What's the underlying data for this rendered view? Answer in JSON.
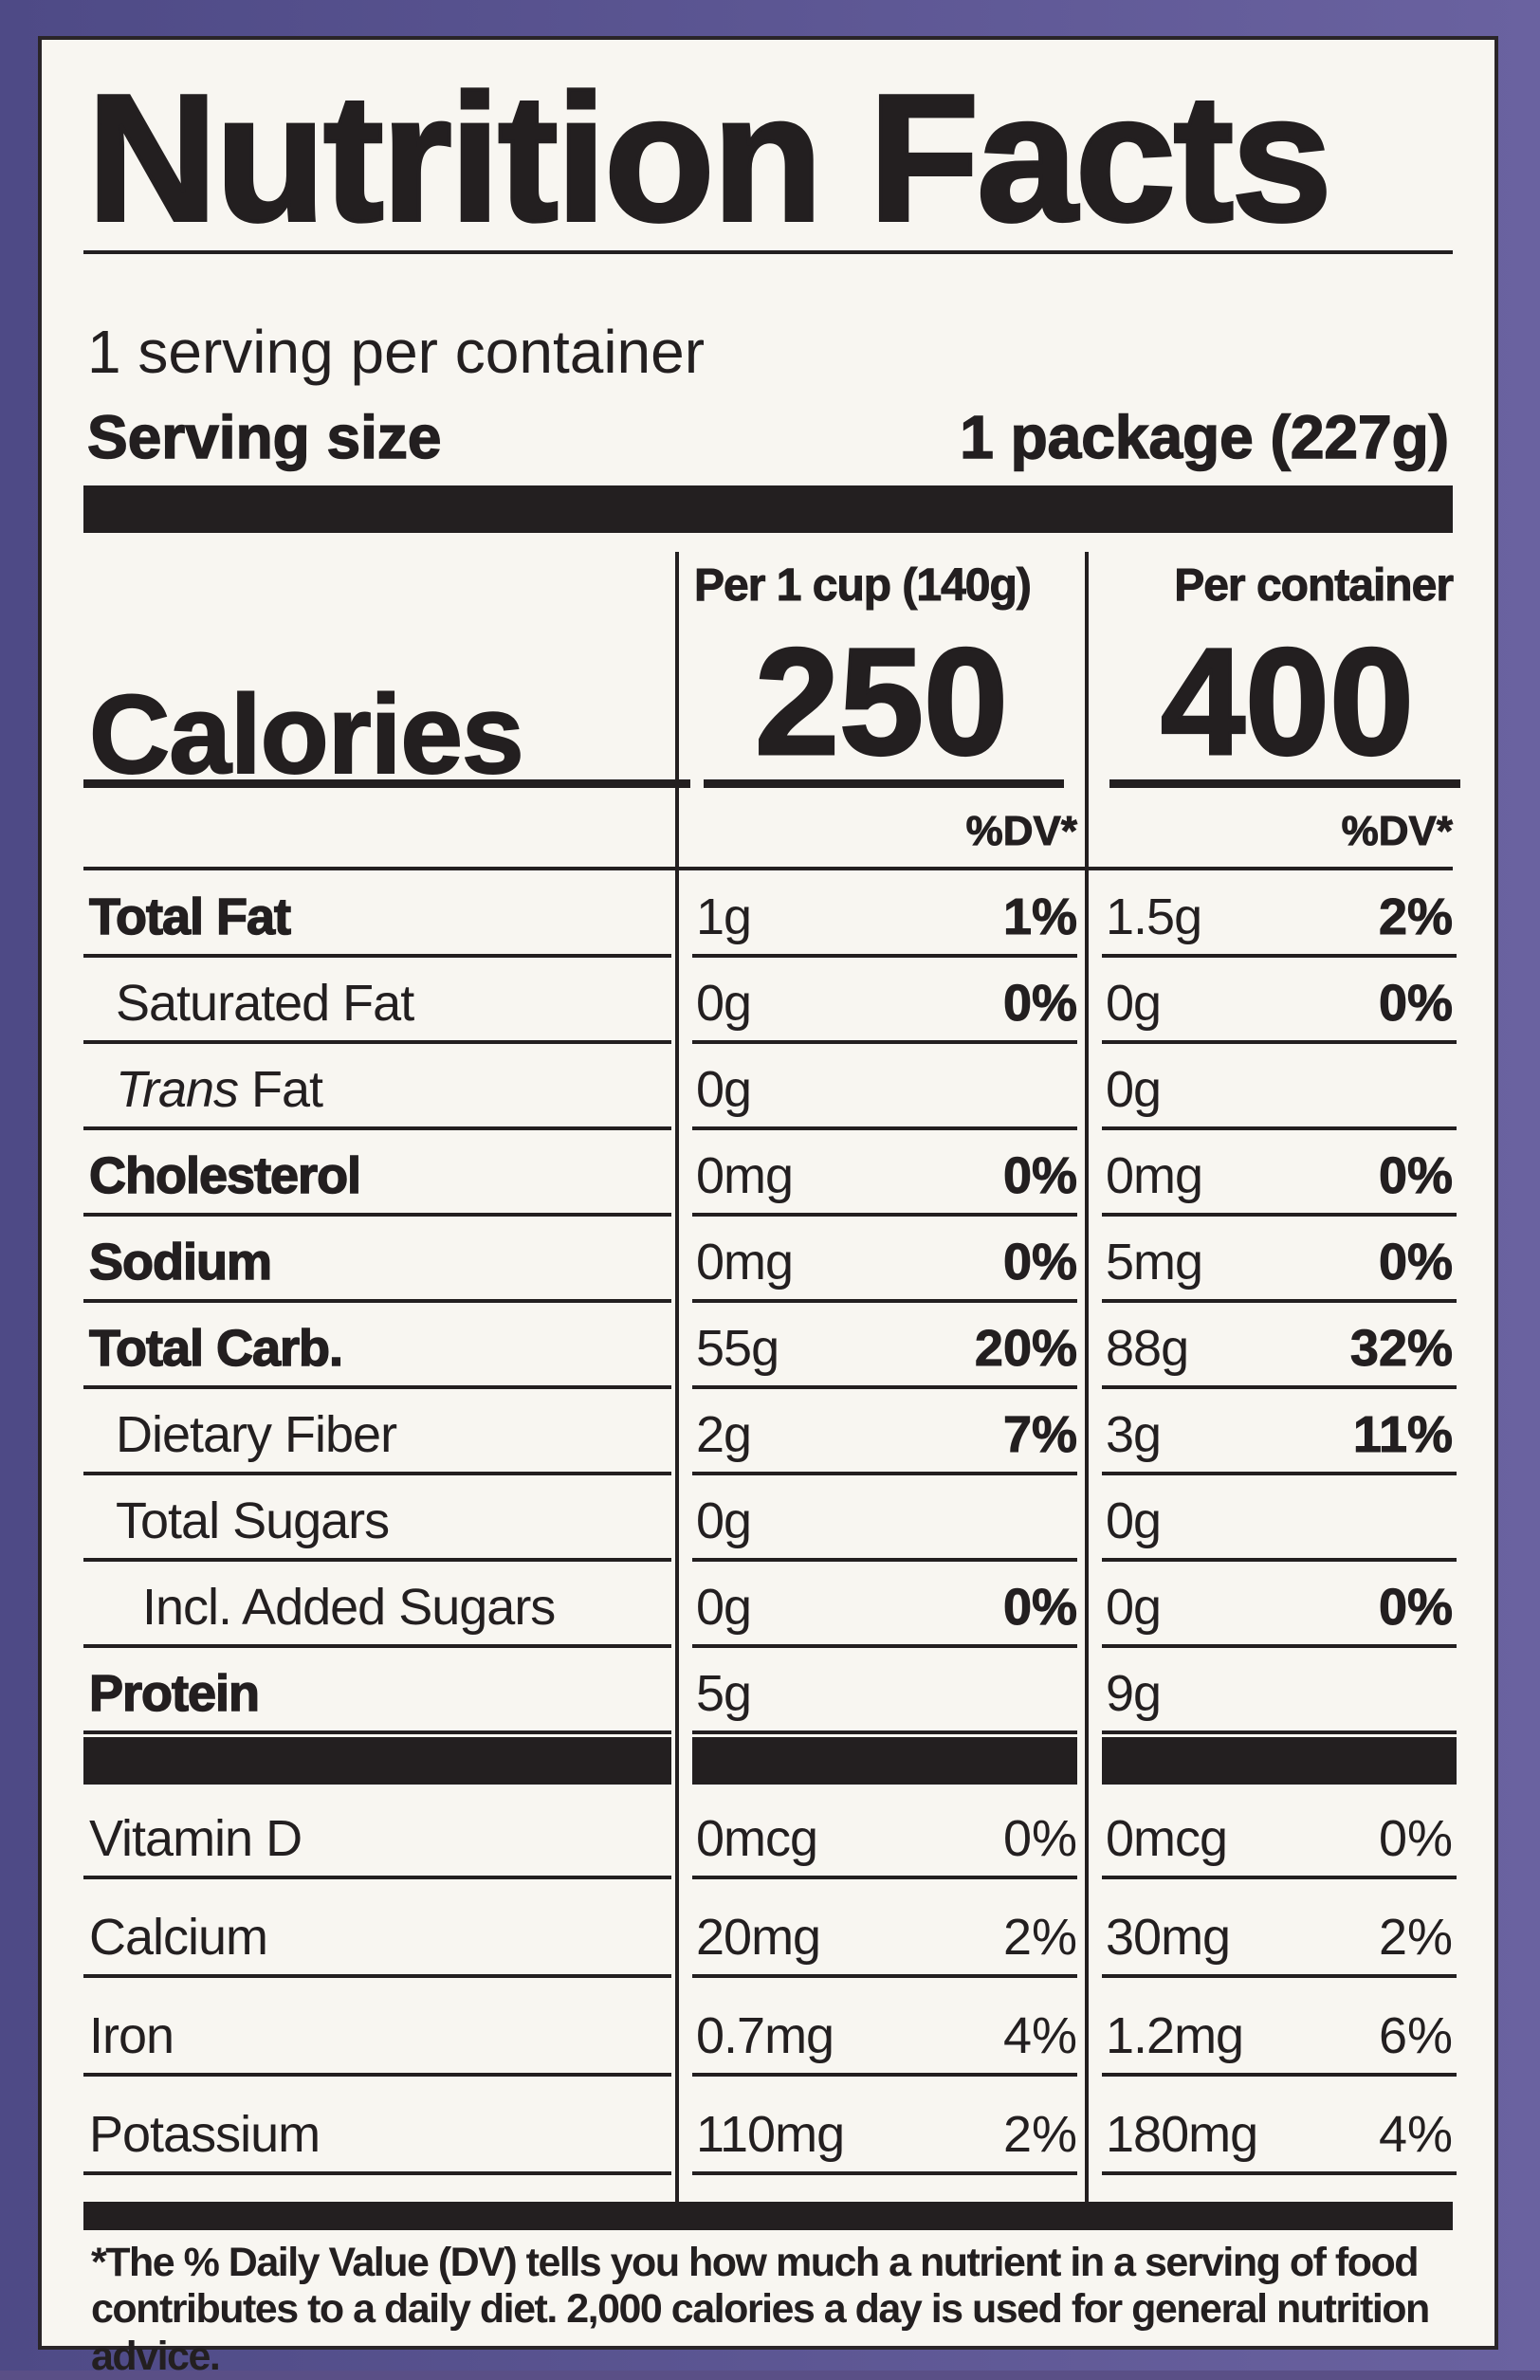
{
  "title": "Nutrition Facts",
  "servings_per_container": "1 serving per container",
  "serving_size_label": "Serving size",
  "serving_size_value": "1 package (227g)",
  "columns": [
    {
      "header": "Per 1 cup (140g)",
      "calories": "250",
      "dv_header": "%DV*"
    },
    {
      "header": "Per container",
      "calories": "400",
      "dv_header": "%DV*"
    }
  ],
  "calories_label": "Calories",
  "nutrients": [
    {
      "name": "Total Fat",
      "bold": true,
      "indent": 0,
      "c1_amt": "1g",
      "c1_dv": "1%",
      "c2_amt": "1.5g",
      "c2_dv": "2%"
    },
    {
      "name": "Saturated Fat",
      "bold": false,
      "indent": 1,
      "c1_amt": "0g",
      "c1_dv": "0%",
      "c2_amt": "0g",
      "c2_dv": "0%"
    },
    {
      "name": "Trans Fat",
      "bold": false,
      "indent": 1,
      "italic_part": "Trans",
      "c1_amt": "0g",
      "c1_dv": "",
      "c2_amt": "0g",
      "c2_dv": ""
    },
    {
      "name": "Cholesterol",
      "bold": true,
      "indent": 0,
      "c1_amt": "0mg",
      "c1_dv": "0%",
      "c2_amt": "0mg",
      "c2_dv": "0%"
    },
    {
      "name": "Sodium",
      "bold": true,
      "indent": 0,
      "c1_amt": "0mg",
      "c1_dv": "0%",
      "c2_amt": "5mg",
      "c2_dv": "0%"
    },
    {
      "name": "Total Carb.",
      "bold": true,
      "indent": 0,
      "c1_amt": "55g",
      "c1_dv": "20%",
      "c2_amt": "88g",
      "c2_dv": "32%"
    },
    {
      "name": "Dietary Fiber",
      "bold": false,
      "indent": 1,
      "c1_amt": "2g",
      "c1_dv": "7%",
      "c2_amt": "3g",
      "c2_dv": "11%"
    },
    {
      "name": "Total Sugars",
      "bold": false,
      "indent": 1,
      "c1_amt": "0g",
      "c1_dv": "",
      "c2_amt": "0g",
      "c2_dv": ""
    },
    {
      "name": "Incl. Added Sugars",
      "bold": false,
      "indent": 2,
      "c1_amt": "0g",
      "c1_dv": "0%",
      "c2_amt": "0g",
      "c2_dv": "0%"
    },
    {
      "name": "Protein",
      "bold": true,
      "indent": 0,
      "c1_amt": "5g",
      "c1_dv": "",
      "c2_amt": "9g",
      "c2_dv": ""
    }
  ],
  "vitamins": [
    {
      "name": "Vitamin D",
      "c1_amt": "0mcg",
      "c1_dv": "0%",
      "c2_amt": "0mcg",
      "c2_dv": "0%"
    },
    {
      "name": "Calcium",
      "c1_amt": "20mg",
      "c1_dv": "2%",
      "c2_amt": "30mg",
      "c2_dv": "2%"
    },
    {
      "name": "Iron",
      "c1_amt": "0.7mg",
      "c1_dv": "4%",
      "c2_amt": "1.2mg",
      "c2_dv": "6%"
    },
    {
      "name": "Potassium",
      "c1_amt": "110mg",
      "c1_dv": "2%",
      "c2_amt": "180mg",
      "c2_dv": "4%"
    }
  ],
  "footnote": "*The % Daily Value (DV) tells you how much a nutrient in a serving of food contributes to a daily diet. 2,000 calories a day is used for general nutrition advice."
}
